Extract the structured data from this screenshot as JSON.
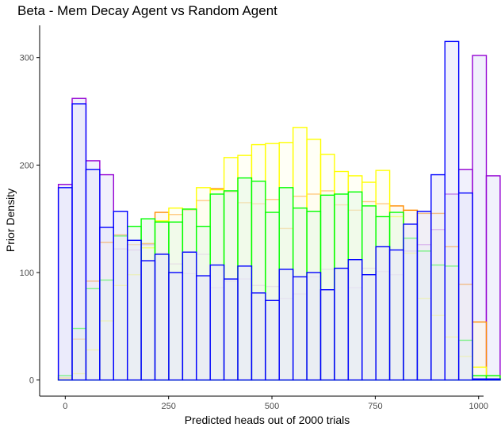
{
  "chart_data": {
    "type": "bar",
    "title": "Beta - Mem Decay Agent vs Random Agent",
    "xlabel": "Predicted heads out of 2000 trials",
    "ylabel": "Prior Density",
    "xlim": [
      -62,
      1012
    ],
    "ylim": [
      -15,
      330
    ],
    "x_ticks": [
      0,
      250,
      500,
      750,
      1000
    ],
    "y_ticks": [
      0,
      100,
      200,
      300
    ],
    "bin_width": 33.4,
    "bin_start": -16.7,
    "grid": false,
    "series": [
      {
        "name": "",
        "stroke": "#9400D3",
        "fill": "#E6E6FA",
        "values": [
          182,
          262,
          204,
          191,
          122,
          121,
          126,
          118,
          108,
          99,
          117,
          86,
          92,
          94,
          88,
          87,
          76,
          80,
          96,
          103,
          104,
          86,
          104,
          101,
          98,
          120,
          126,
          140,
          173,
          196,
          302,
          190
        ]
      },
      {
        "name": "",
        "stroke": "#FF8C00",
        "fill": "#FFF5E6",
        "values": [
          2,
          38,
          92,
          128,
          135,
          126,
          127,
          156,
          154,
          158,
          167,
          178,
          175,
          165,
          164,
          168,
          141,
          171,
          173,
          176,
          163,
          158,
          166,
          164,
          162,
          158,
          155,
          155,
          124,
          89,
          54,
          4
        ]
      },
      {
        "name": "",
        "stroke": "#FFFF00",
        "fill": "#FFFFEE",
        "values": [
          1,
          6,
          28,
          55,
          88,
          98,
          123,
          148,
          160,
          159,
          179,
          177,
          207,
          209,
          219,
          220,
          221,
          235,
          224,
          210,
          194,
          190,
          184,
          195,
          152,
          118,
          76,
          60,
          40,
          22,
          12,
          1
        ]
      },
      {
        "name": "",
        "stroke": "#00FF00",
        "fill": "#E6F8E6",
        "values": [
          4,
          48,
          85,
          93,
          134,
          143,
          150,
          147,
          147,
          159,
          143,
          173,
          176,
          188,
          185,
          156,
          179,
          160,
          157,
          172,
          173,
          175,
          162,
          152,
          156,
          132,
          120,
          107,
          106,
          37,
          4,
          4
        ]
      },
      {
        "name": "",
        "stroke": "#0000FF",
        "fill": "#E6E6FA",
        "values": [
          179,
          257,
          196,
          142,
          157,
          130,
          111,
          117,
          100,
          119,
          97,
          107,
          94,
          106,
          81,
          74,
          103,
          96,
          100,
          84,
          104,
          112,
          98,
          124,
          121,
          145,
          157,
          191,
          315,
          174,
          1,
          1
        ]
      }
    ]
  }
}
